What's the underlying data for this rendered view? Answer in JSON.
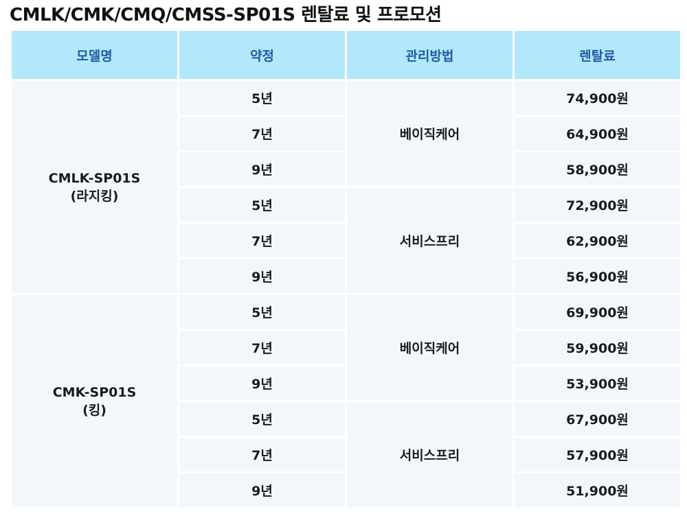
{
  "title": "CMLK/CMK/CMQ/CMSS-SP01S 렌탈료 및 프로모션",
  "headers": {
    "model": "모델명",
    "contract": "약정",
    "care": "관리방법",
    "fee": "렌탈료"
  },
  "groups": [
    {
      "model_code": "CMLK-SP01S",
      "model_desc": "(라지킹)",
      "care_groups": [
        {
          "method": "베이직케어",
          "rows": [
            {
              "term": "5년",
              "price": "74,900원"
            },
            {
              "term": "7년",
              "price": "64,900원"
            },
            {
              "term": "9년",
              "price": "58,900원"
            }
          ]
        },
        {
          "method": "서비스프리",
          "rows": [
            {
              "term": "5년",
              "price": "72,900원"
            },
            {
              "term": "7년",
              "price": "62,900원"
            },
            {
              "term": "9년",
              "price": "56,900원"
            }
          ]
        }
      ]
    },
    {
      "model_code": "CMK-SP01S",
      "model_desc": "(킹)",
      "care_groups": [
        {
          "method": "베이직케어",
          "rows": [
            {
              "term": "5년",
              "price": "69,900원"
            },
            {
              "term": "7년",
              "price": "59,900원"
            },
            {
              "term": "9년",
              "price": "53,900원"
            }
          ]
        },
        {
          "method": "서비스프리",
          "rows": [
            {
              "term": "5년",
              "price": "67,900원"
            },
            {
              "term": "7년",
              "price": "57,900원"
            },
            {
              "term": "9년",
              "price": "51,900원"
            }
          ]
        }
      ]
    }
  ]
}
